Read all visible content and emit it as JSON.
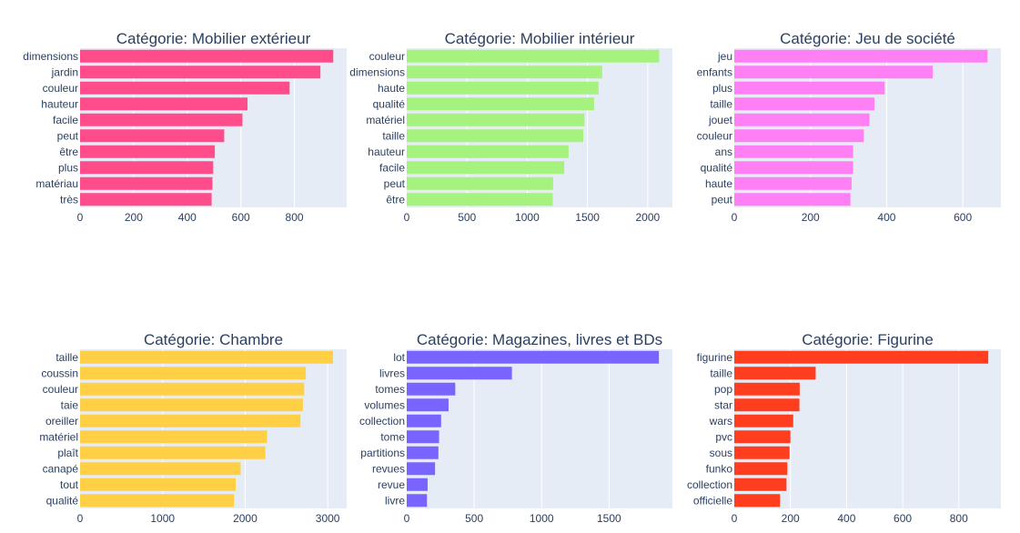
{
  "chart_data": [
    {
      "type": "bar",
      "orientation": "horizontal",
      "title": "Catégorie: Mobilier extérieur",
      "color": "#FF4D8C",
      "categories": [
        "dimensions",
        "jardin",
        "couleur",
        "hauteur",
        "facile",
        "peut",
        "être",
        "plus",
        "matériau",
        "très"
      ],
      "values": [
        945,
        897,
        782,
        625,
        606,
        538,
        503,
        497,
        494,
        491
      ],
      "xticks": [
        0,
        200,
        400,
        600,
        800
      ],
      "xlim": [
        0,
        995
      ]
    },
    {
      "type": "bar",
      "orientation": "horizontal",
      "title": "Catégorie: Mobilier intérieur",
      "color": "#A6F27E",
      "categories": [
        "couleur",
        "dimensions",
        "haute",
        "qualité",
        "matériel",
        "taille",
        "hauteur",
        "facile",
        "peut",
        "être"
      ],
      "values": [
        2095,
        1622,
        1592,
        1555,
        1475,
        1465,
        1343,
        1307,
        1215,
        1212
      ],
      "xticks": [
        0,
        500,
        1000,
        1500,
        2000
      ],
      "xlim": [
        0,
        2205
      ]
    },
    {
      "type": "bar",
      "orientation": "horizontal",
      "title": "Catégorie: Jeu de société",
      "color": "#FF7FF5",
      "categories": [
        "jeu",
        "enfants",
        "plus",
        "taille",
        "jouet",
        "couleur",
        "ans",
        "qualité",
        "haute",
        "peut"
      ],
      "values": [
        665,
        521,
        395,
        368,
        355,
        340,
        312,
        312,
        308,
        305
      ],
      "xticks": [
        0,
        200,
        400,
        600
      ],
      "xlim": [
        0,
        700
      ]
    },
    {
      "type": "bar",
      "orientation": "horizontal",
      "title": "Catégorie: Chambre",
      "color": "#FFCF45",
      "categories": [
        "taille",
        "coussin",
        "couleur",
        "taie",
        "oreiller",
        "matériel",
        "plaît",
        "canapé",
        "tout",
        "qualité"
      ],
      "values": [
        3065,
        2735,
        2715,
        2700,
        2670,
        2265,
        2245,
        1945,
        1885,
        1865
      ],
      "xticks": [
        0,
        1000,
        2000,
        3000
      ],
      "xlim": [
        0,
        3230
      ]
    },
    {
      "type": "bar",
      "orientation": "horizontal",
      "title": "Catégorie: Magazines, livres et BDs",
      "color": "#7A64FF",
      "categories": [
        "lot",
        "livres",
        "tomes",
        "volumes",
        "collection",
        "tome",
        "partitions",
        "revues",
        "revue",
        "livre"
      ],
      "values": [
        1870,
        780,
        360,
        310,
        255,
        240,
        235,
        210,
        155,
        150
      ],
      "xticks": [
        0,
        500,
        1000,
        1500
      ],
      "xlim": [
        0,
        1970
      ]
    },
    {
      "type": "bar",
      "orientation": "horizontal",
      "title": "Catégorie: Figurine",
      "color": "#FF3D1F",
      "categories": [
        "figurine",
        "taille",
        "pop",
        "star",
        "wars",
        "pvc",
        "sous",
        "funko",
        "collection",
        "officielle"
      ],
      "values": [
        905,
        290,
        233,
        232,
        210,
        200,
        197,
        189,
        186,
        163
      ],
      "xticks": [
        0,
        200,
        400,
        600,
        800
      ],
      "xlim": [
        0,
        950
      ]
    }
  ]
}
